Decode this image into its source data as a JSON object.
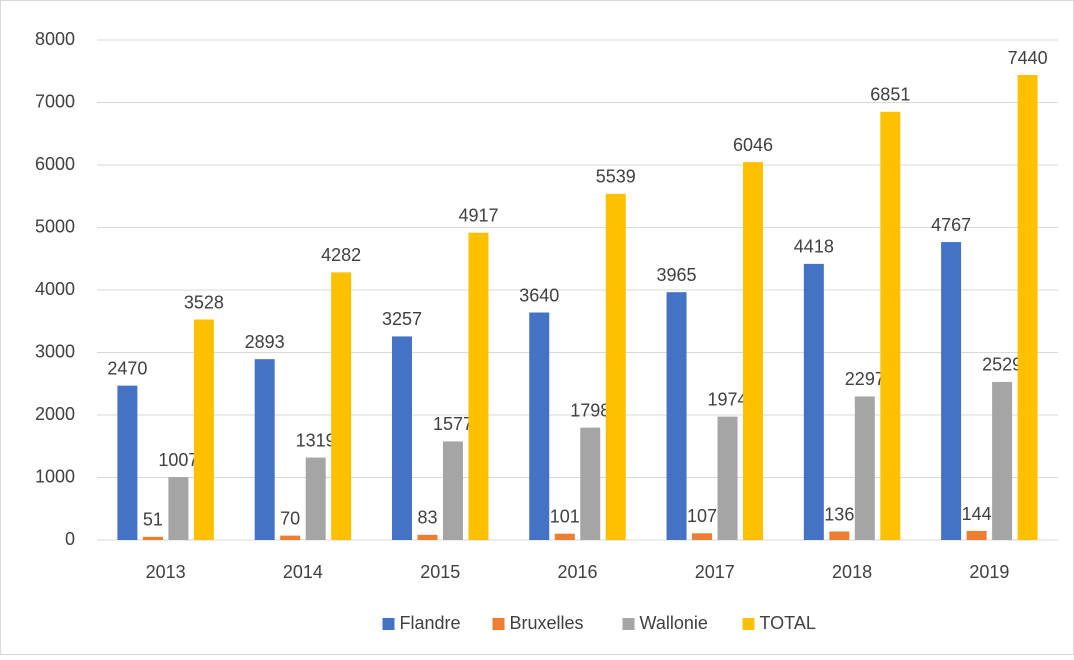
{
  "chart_data": {
    "type": "bar",
    "categories": [
      "2013",
      "2014",
      "2015",
      "2016",
      "2017",
      "2018",
      "2019"
    ],
    "series": [
      {
        "name": "Flandre",
        "color": "#4472c4",
        "values": [
          2470,
          2893,
          3257,
          3640,
          3965,
          4418,
          4767
        ]
      },
      {
        "name": "Bruxelles",
        "color": "#ed7d31",
        "values": [
          51,
          70,
          83,
          101,
          107,
          136,
          144
        ]
      },
      {
        "name": "Wallonie",
        "color": "#a5a5a5",
        "values": [
          1007,
          1319,
          1577,
          1798,
          1974,
          2297,
          2529
        ]
      },
      {
        "name": "TOTAL",
        "color": "#ffc000",
        "values": [
          3528,
          4282,
          4917,
          5539,
          6046,
          6851,
          7440
        ]
      }
    ],
    "ylim": [
      0,
      8000
    ],
    "yticks": [
      0,
      1000,
      2000,
      3000,
      4000,
      5000,
      6000,
      7000,
      8000
    ],
    "grid": true,
    "legend": "bottom"
  }
}
